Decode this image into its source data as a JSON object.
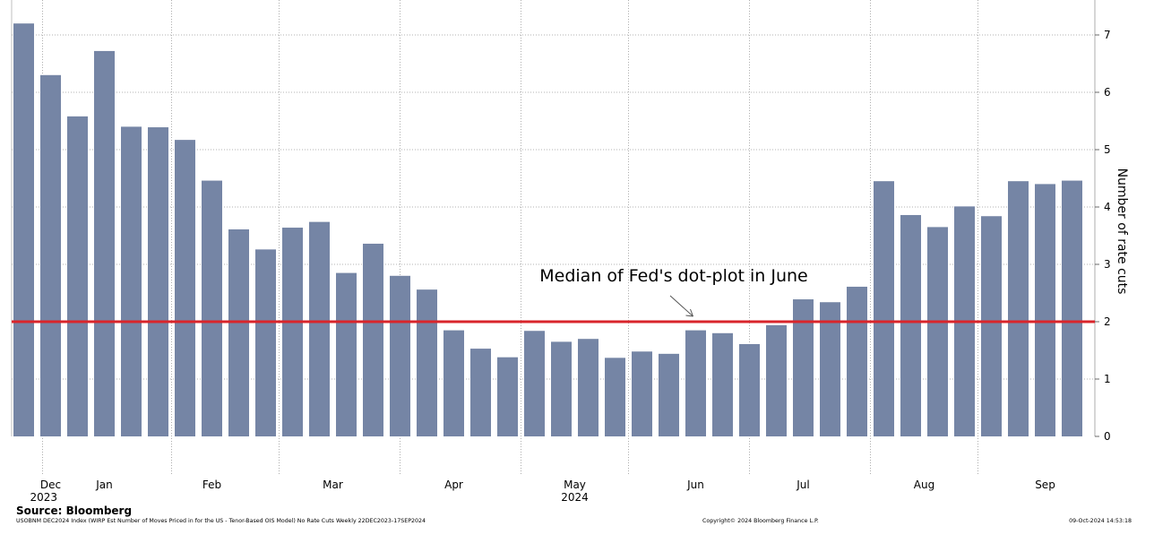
{
  "chart_data": {
    "type": "bar",
    "ylabel": "Number of rate cuts",
    "ylim": [
      0,
      7.5
    ],
    "yticks": [
      0,
      1,
      2,
      3,
      4,
      5,
      6,
      7
    ],
    "grid": true,
    "y_axis_side": "right",
    "bar_color": "#7585a5",
    "dates": [
      "2023-12-22",
      "2023-12-29",
      "2024-01-05",
      "2024-01-12",
      "2024-01-19",
      "2024-01-26",
      "2024-02-02",
      "2024-02-09",
      "2024-02-16",
      "2024-02-23",
      "2024-03-01",
      "2024-03-08",
      "2024-03-15",
      "2024-03-22",
      "2024-03-29",
      "2024-04-05",
      "2024-04-12",
      "2024-04-19",
      "2024-04-26",
      "2024-05-03",
      "2024-05-10",
      "2024-05-17",
      "2024-05-24",
      "2024-05-31",
      "2024-06-07",
      "2024-06-14",
      "2024-06-21",
      "2024-06-28",
      "2024-07-05",
      "2024-07-12",
      "2024-07-19",
      "2024-07-26",
      "2024-08-02",
      "2024-08-09",
      "2024-08-16",
      "2024-08-23",
      "2024-08-30",
      "2024-09-06",
      "2024-09-13",
      "2024-09-17"
    ],
    "values": [
      7.2,
      6.3,
      5.58,
      6.72,
      5.4,
      5.39,
      5.17,
      4.46,
      3.61,
      3.26,
      3.64,
      3.74,
      2.85,
      3.36,
      2.8,
      2.56,
      1.85,
      1.53,
      1.38,
      1.84,
      1.65,
      1.7,
      1.37,
      1.48,
      1.44,
      1.85,
      1.8,
      1.61,
      1.94,
      2.39,
      2.34,
      2.61,
      4.45,
      3.86,
      3.65,
      4.01,
      3.84,
      4.45,
      4.4,
      4.46
    ],
    "x_tick_labels": [
      {
        "label": "Dec",
        "at_bar": 1
      },
      {
        "label": "Jan",
        "at_bar": 3
      },
      {
        "label": "Feb",
        "at_bar": 7
      },
      {
        "label": "Mar",
        "at_bar": 11.5
      },
      {
        "label": "Apr",
        "at_bar": 16
      },
      {
        "label": "May",
        "at_bar": 20.5
      },
      {
        "label": "Jun",
        "at_bar": 25
      },
      {
        "label": "Jul",
        "at_bar": 29
      },
      {
        "label": "Aug",
        "at_bar": 33.5
      },
      {
        "label": "Sep",
        "at_bar": 38
      }
    ],
    "year_labels": [
      {
        "label": "2023",
        "at_bar": 0.7
      },
      {
        "label": "2024",
        "at_bar": 20.5
      }
    ],
    "vertical_gridlines_at_bar": [
      0.7,
      5.5,
      9.5,
      14,
      18.5,
      22.5,
      27,
      31.5,
      35.5
    ],
    "reference_line": {
      "value": 2,
      "color": "#d9252b"
    },
    "annotation": {
      "text": "Median of Fed's dot-plot in June",
      "arrow_to_value": 2,
      "arrow_to_bar": 25
    }
  },
  "source": "Source: Bloomberg",
  "footnote_left": "USOBNM DEC2024 Index (WIRP Est Number of Moves Priced in for the US - Tenor-Based OIS Model) No Rate Cuts  Weekly 22DEC2023-17SEP2024",
  "footnote_center": "Copyright© 2024 Bloomberg Finance L.P.",
  "footnote_right": "09-Oct-2024 14:53:18"
}
